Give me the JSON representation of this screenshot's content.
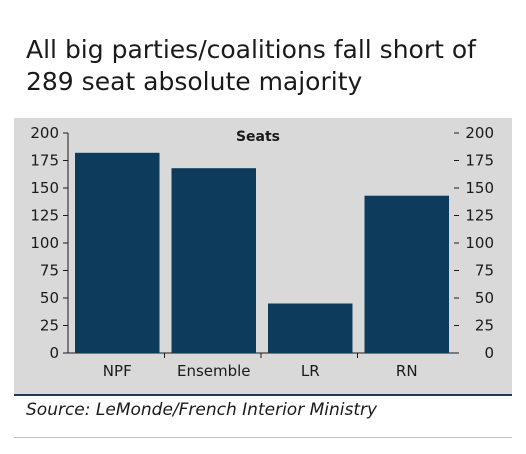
{
  "header": {
    "title": "All big parties/coalitions fall short of 289 seat absolute majority"
  },
  "footer": {
    "source": "Source: LeMonde/French Interior Ministry"
  },
  "colors": {
    "bar": "#0d3b5c",
    "panel": "#d9d9d9",
    "text": "#1a1a1a"
  },
  "chart_data": {
    "type": "bar",
    "title": "Seats",
    "categories": [
      "NPF",
      "Ensemble",
      "LR",
      "RN"
    ],
    "values": [
      182,
      168,
      45,
      143
    ],
    "ylim": [
      0,
      200
    ],
    "yticks": [
      0,
      25,
      50,
      75,
      100,
      125,
      150,
      175,
      200
    ],
    "right_axis": true,
    "grid": false,
    "xlabel": "",
    "ylabel": ""
  }
}
